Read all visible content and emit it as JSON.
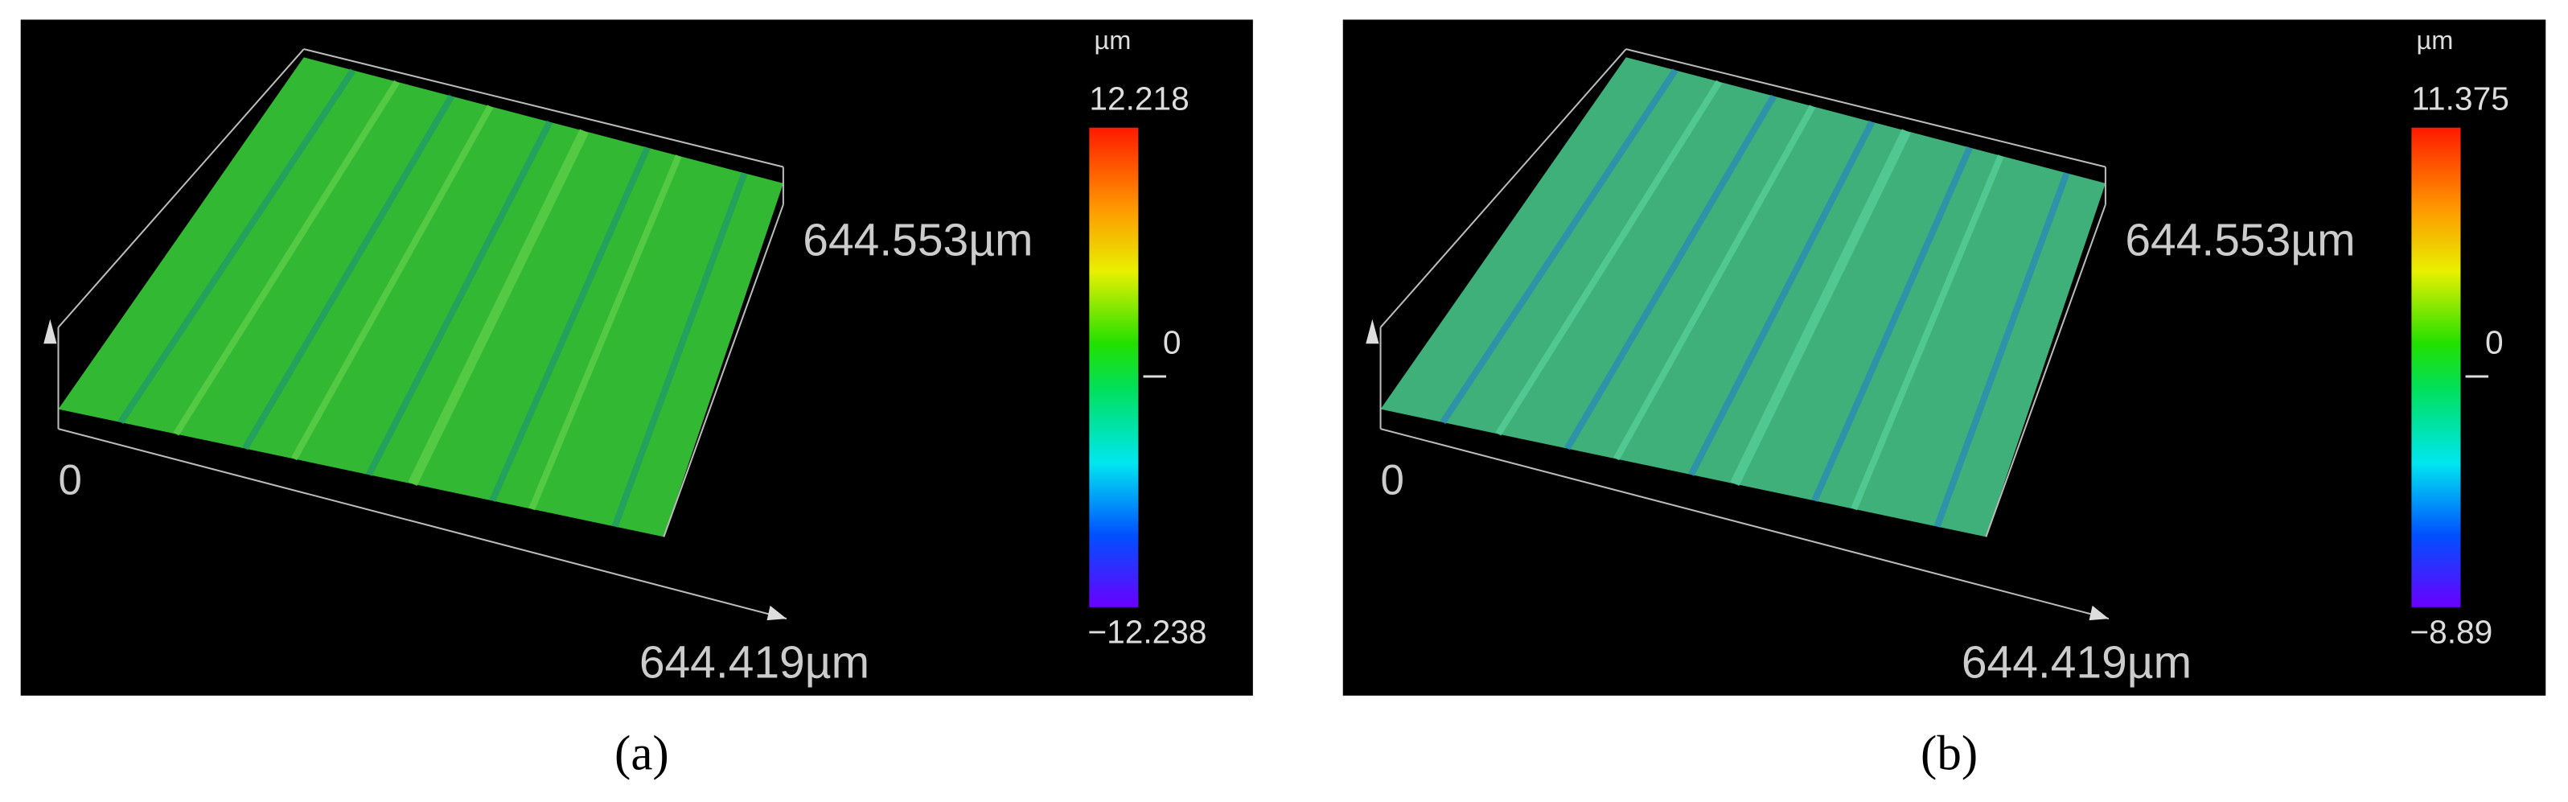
{
  "panels": [
    {
      "label": "(a)",
      "unit": "µm",
      "colorbar": {
        "max": "12.218",
        "mid": "0",
        "min": "−12.238"
      },
      "axis_y": "644.553µm",
      "axis_x": "644.419µm",
      "origin": "0"
    },
    {
      "label": "(b)",
      "unit": "µm",
      "colorbar": {
        "max": "11.375",
        "mid": "0",
        "min": "−8.89"
      },
      "axis_y": "644.553µm",
      "axis_x": "644.419µm",
      "origin": "0"
    }
  ]
}
